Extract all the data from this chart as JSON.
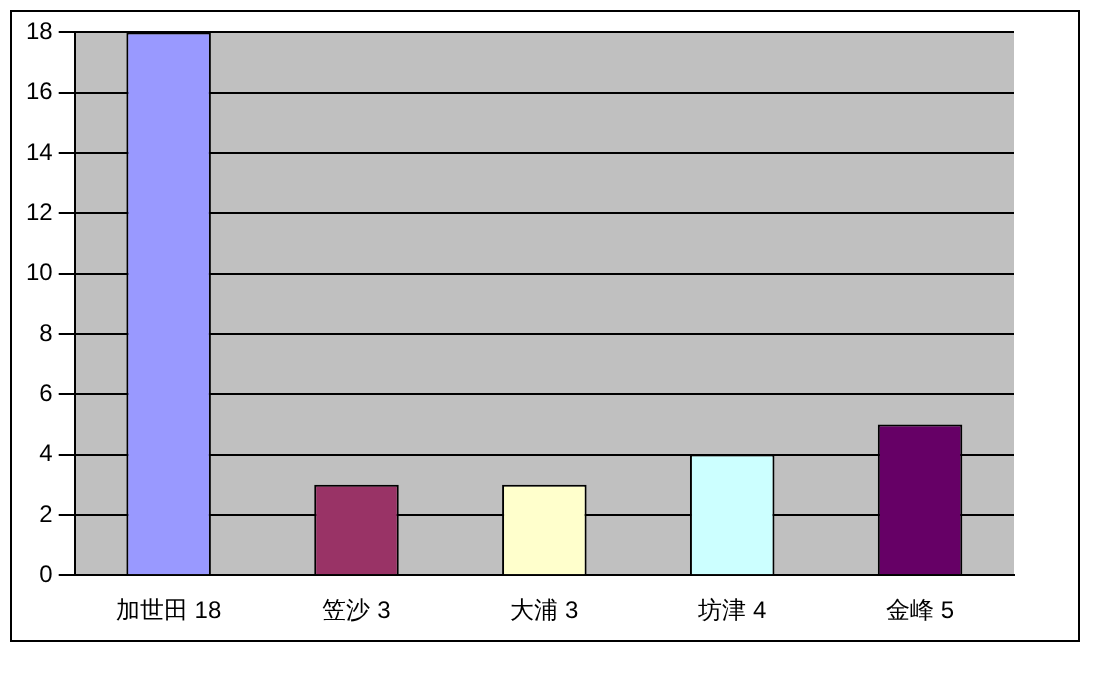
{
  "chart_data": {
    "type": "bar",
    "categories": [
      "加世田 18",
      "笠沙 3",
      "大浦 3",
      "坊津 4",
      "金峰 5"
    ],
    "values": [
      18,
      3,
      3,
      4,
      5
    ],
    "colors": [
      "#9999ff",
      "#993366",
      "#ffffcc",
      "#ccffff",
      "#660066"
    ],
    "ylim": [
      0,
      18
    ],
    "yticks": [
      0,
      2,
      4,
      6,
      8,
      10,
      12,
      14,
      16,
      18
    ],
    "grid": "y",
    "legend": false
  }
}
